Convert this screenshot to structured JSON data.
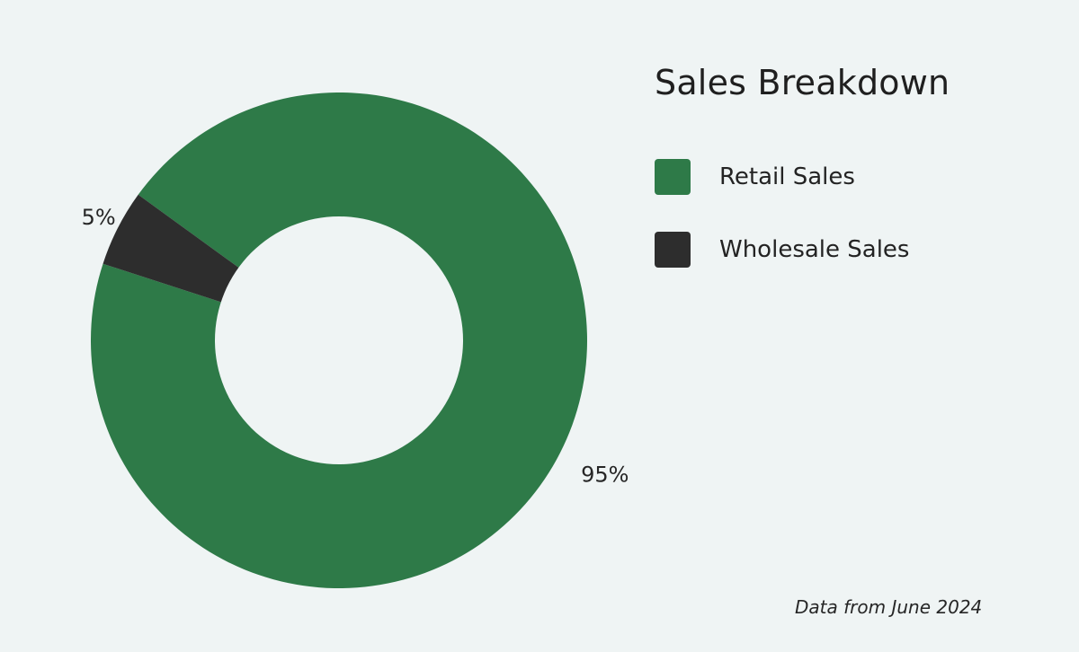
{
  "chart_data": {
    "type": "pie",
    "title": "Sales Breakdown",
    "slices": [
      {
        "label": "Retail Sales",
        "value": 95,
        "data_label": "95%",
        "color": "#2e7a48"
      },
      {
        "label": "Wholesale Sales",
        "value": 5,
        "data_label": "5%",
        "color": "#2d2d2d"
      }
    ],
    "legend": "right",
    "donut": true,
    "footnote": "Data from June 2024"
  },
  "colors": {
    "background": "#eff4f4",
    "hole": "#eff4f4"
  }
}
